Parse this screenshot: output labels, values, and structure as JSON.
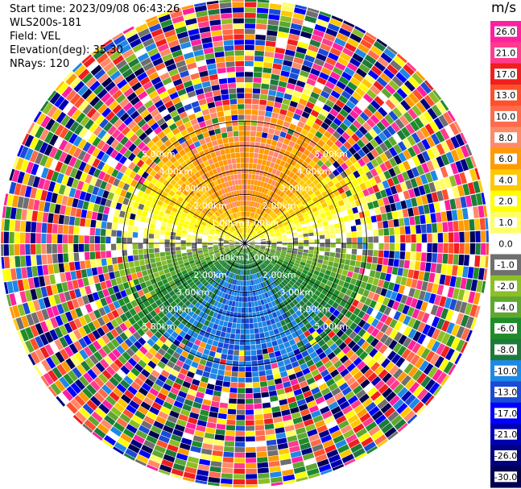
{
  "header": {
    "start_time": "Start time: 2023/09/08 06:43:26",
    "instrument": "WLS200s-181",
    "field": "Field: VEL",
    "elevation": "Elevation(deg): 35.30",
    "nrays": "NRays: 120"
  },
  "chart_data": {
    "type": "heatmap",
    "projection": "polar",
    "nrays": 120,
    "max_range_km": 10.0,
    "range_rings_km": [
      1.0,
      2.0,
      3.0,
      4.0,
      5.0
    ],
    "ring_labels": [
      "1.00km",
      "2.00km",
      "3.00km",
      "4.00km",
      "5.00km"
    ],
    "spokes_deg": [
      0,
      30,
      60,
      90,
      120,
      150,
      180,
      210,
      240,
      270,
      300,
      330
    ],
    "velocity_pattern": {
      "north_sector_mean_ms": 8.0,
      "south_sector_mean_ms": -10.0,
      "valid_range_km": 5.5,
      "beyond_valid_range": "noise"
    },
    "colorbar": {
      "unit": "m/s",
      "ticks": [
        "26.0",
        "21.0",
        "17.0",
        "13.0",
        "10.0",
        "8.0",
        "6.0",
        "4.0",
        "2.0",
        "1.0",
        "0.0",
        "-1.0",
        "-2.0",
        "-4.0",
        "-6.0",
        "-8.0",
        "-10.0",
        "-13.0",
        "-17.0",
        "-21.0",
        "-26.0",
        "-30.0"
      ],
      "colors": [
        "#ff1fa0",
        "#ff3b8e",
        "#f01e1e",
        "#ff4f2b",
        "#ff6b4d",
        "#ff8a6a",
        "#ff9a00",
        "#ffc800",
        "#ffff00",
        "#ffff66",
        "#ffffff",
        "#6f6f6f",
        "#8cbf26",
        "#5fa830",
        "#1f8c2a",
        "#1e7a3a",
        "#1e88e5",
        "#1a4bd6",
        "#0000ff",
        "#0000b3",
        "#000080",
        "#000050"
      ]
    }
  }
}
